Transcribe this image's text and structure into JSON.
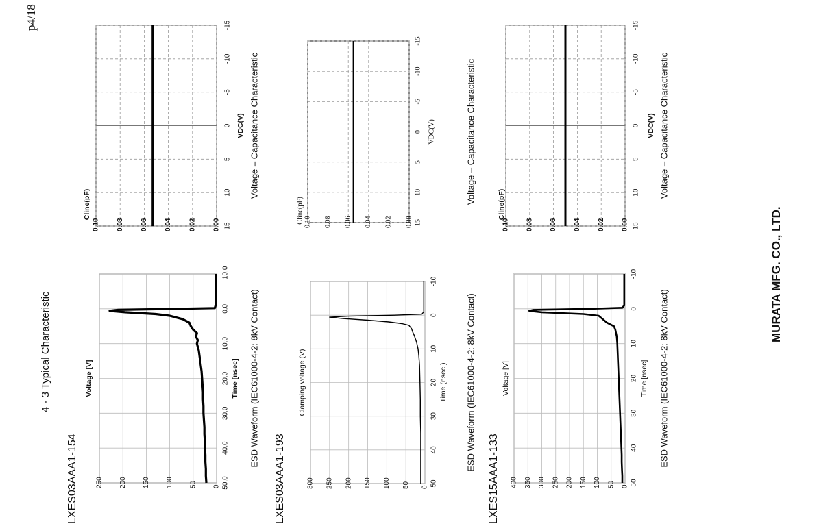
{
  "page": {
    "number": "p4/18"
  },
  "section": {
    "title": "4 - 3 Typical Characteristic"
  },
  "company": {
    "name": "MURATA MFG. CO., LTD."
  },
  "products": [
    {
      "id": "LXES03AAA1-154"
    },
    {
      "id": "LXES03AAA1-193"
    },
    {
      "id": "LXES15AAA1-133"
    }
  ],
  "chart_data": [
    {
      "type": "line",
      "product": "LXES03AAA1-154",
      "title": "ESD Waveform (IEC61000-4-2: 8kV Contact)",
      "xlabel": "Time [nsec]",
      "ylabel": "Voltage [V]",
      "xlim": [
        -10,
        50
      ],
      "ylim": [
        0,
        250
      ],
      "xticks": [
        "-10.0",
        "0.0",
        "10.0",
        "20.0",
        "30.0",
        "40.0",
        "50.0"
      ],
      "yticks": [
        "0",
        "50",
        "100",
        "150",
        "200",
        "250"
      ],
      "x": [
        -10,
        -1,
        -0.2,
        0,
        0.3,
        0.6,
        1,
        1.5,
        2,
        3,
        4,
        5,
        6,
        7,
        8,
        9,
        10,
        12,
        14,
        16,
        18,
        20,
        22,
        24,
        26,
        28,
        30,
        32,
        34,
        36,
        38,
        40,
        42,
        44,
        46,
        48,
        50
      ],
      "y": [
        2,
        2,
        4,
        80,
        210,
        228,
        195,
        130,
        100,
        72,
        58,
        55,
        50,
        42,
        44,
        40,
        42,
        38,
        36,
        34,
        32,
        31,
        30,
        29,
        29,
        28,
        28,
        27,
        26,
        26,
        25,
        25,
        24,
        24,
        23,
        23,
        22
      ]
    },
    {
      "type": "line",
      "product": "LXES03AAA1-154",
      "title": "Voltage – Capacitance Characteristic",
      "xlabel": "VDC(V)",
      "ylabel": "Cline(pF)",
      "xlim": [
        -15,
        15
      ],
      "ylim": [
        0,
        0.1
      ],
      "xticks": [
        "-15",
        "-10",
        "-5",
        "0",
        "5",
        "10",
        "15"
      ],
      "yticks": [
        "0.00",
        "0.02",
        "0.04",
        "0.06",
        "0.08",
        "0.10"
      ],
      "x": [
        -15,
        15
      ],
      "y": [
        0.053,
        0.053
      ]
    },
    {
      "type": "line",
      "product": "LXES03AAA1-193",
      "title": "ESD Waveform (IEC61000-4-2: 8kV Contact)",
      "xlabel": "Time (nsec.)",
      "ylabel": "Clamping voltage (V)",
      "xlim": [
        -10,
        50
      ],
      "ylim": [
        0,
        300
      ],
      "xticks": [
        "-10",
        "0",
        "10",
        "20",
        "30",
        "40",
        "50"
      ],
      "yticks": [
        "0",
        "50",
        "100",
        "150",
        "200",
        "250",
        "300"
      ],
      "x": [
        -10,
        -1,
        -0.3,
        0,
        0.3,
        0.6,
        1,
        1.5,
        2,
        2.5,
        3,
        4,
        5,
        6,
        7,
        8,
        9,
        10,
        12,
        15,
        20,
        25,
        30,
        35,
        40,
        45,
        50
      ],
      "y": [
        3,
        3,
        8,
        80,
        200,
        250,
        215,
        150,
        95,
        60,
        42,
        35,
        32,
        28,
        25,
        22,
        20,
        18,
        16,
        14,
        13,
        12,
        12,
        11,
        11,
        11,
        11
      ]
    },
    {
      "type": "line",
      "product": "LXES03AAA1-193",
      "title": "Voltage – Capacitance Characteristic",
      "xlabel": "VDC(V)",
      "ylabel": "Cline(pF)",
      "xlim": [
        -15,
        15
      ],
      "ylim": [
        0,
        0.1
      ],
      "xticks": [
        "-15",
        "-10",
        "-5",
        "0",
        "5",
        "10",
        "15"
      ],
      "yticks": [
        "0.00",
        "0.02",
        "0.04",
        "0.06",
        "0.08",
        "0.10"
      ],
      "x": [
        -15,
        15
      ],
      "y": [
        0.055,
        0.055
      ]
    },
    {
      "type": "line",
      "product": "LXES15AAA1-133",
      "title": "ESD Waveform (IEC61000-4-2: 8kV Contact)",
      "xlabel": "Time [nsec]",
      "ylabel": "Voltage [V]",
      "xlim": [
        -10,
        50
      ],
      "ylim": [
        0,
        400
      ],
      "xticks": [
        "-10",
        "0",
        "10",
        "20",
        "30",
        "40",
        "50"
      ],
      "yticks": [
        "0",
        "50",
        "100",
        "150",
        "200",
        "250",
        "300",
        "350",
        "400"
      ],
      "x": [
        -10,
        -1,
        -0.3,
        0,
        0.3,
        0.6,
        1,
        1.5,
        2,
        3,
        4,
        5,
        6,
        8,
        10,
        12,
        14,
        16,
        18,
        20,
        22,
        24,
        26,
        28,
        30,
        32,
        34,
        36,
        38,
        40,
        42,
        44,
        46,
        48,
        50
      ],
      "y": [
        3,
        3,
        10,
        120,
        330,
        345,
        300,
        150,
        95,
        80,
        65,
        40,
        35,
        30,
        28,
        27,
        26,
        25,
        24,
        23,
        22,
        21,
        20,
        19,
        18,
        17,
        16,
        15,
        14,
        13,
        12,
        12,
        11,
        10,
        10
      ]
    },
    {
      "type": "line",
      "product": "LXES15AAA1-133",
      "title": "Voltage – Capacitance Characteristic",
      "xlabel": "VDC(V)",
      "ylabel": "Cline(pF)",
      "xlim": [
        -15,
        15
      ],
      "ylim": [
        0,
        0.1
      ],
      "xticks": [
        "-15",
        "-10",
        "-5",
        "0",
        "5",
        "10",
        "15"
      ],
      "yticks": [
        "0.00",
        "0.02",
        "0.04",
        "0.06",
        "0.08",
        "0.10"
      ],
      "x": [
        -15,
        15
      ],
      "y": [
        0.05,
        0.05
      ]
    }
  ]
}
